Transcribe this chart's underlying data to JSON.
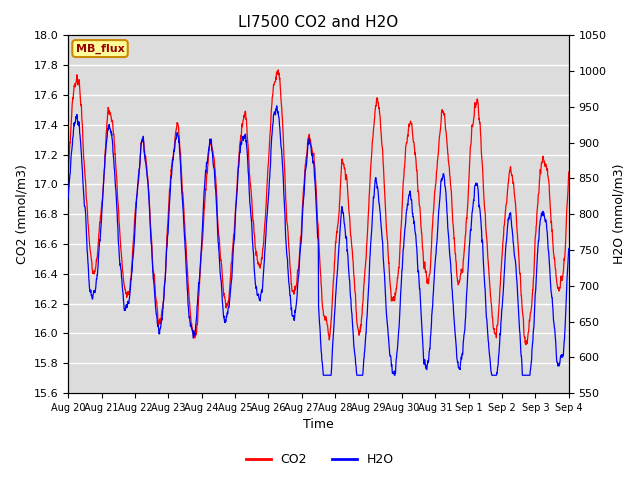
{
  "title": "LI7500 CO2 and H2O",
  "xlabel": "Time",
  "ylabel_left": "CO2 (mmol/m3)",
  "ylabel_right": "H2O (mmol/m3)",
  "co2_ylim": [
    15.6,
    18.0
  ],
  "h2o_ylim": [
    550,
    1050
  ],
  "co2_color": "#ff0000",
  "h2o_color": "#0000ff",
  "legend_label_co2": "CO2",
  "legend_label_h2o": "H2O",
  "box_label": "MB_flux",
  "box_facecolor": "#ffff99",
  "box_edgecolor": "#cc8800",
  "background_color": "#dcdcdc",
  "xtick_labels": [
    "Aug 20",
    "Aug 21",
    "Aug 22",
    "Aug 23",
    "Aug 24",
    "Aug 25",
    "Aug 26",
    "Aug 27",
    "Aug 28",
    "Aug 29",
    "Aug 30",
    "Aug 31",
    "Sep 1",
    "Sep 2",
    "Sep 3",
    "Sep 4"
  ],
  "n_points": 2000,
  "seed": 7
}
